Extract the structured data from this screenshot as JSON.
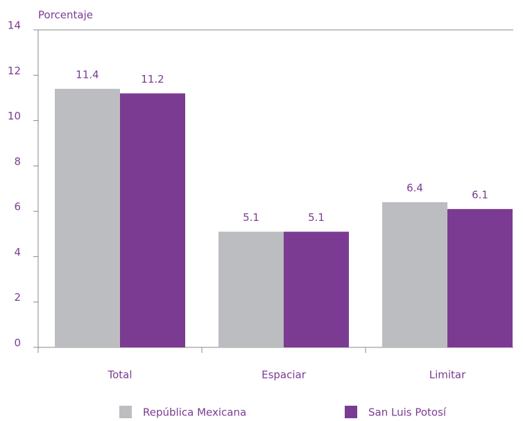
{
  "chart_data": {
    "type": "bar",
    "y_label": "Porcentaje",
    "categories": [
      "Total",
      "Espaciar",
      "Limitar"
    ],
    "series": [
      {
        "name": "República Mexicana",
        "color": "#bcbdc0",
        "values": [
          11.4,
          5.1,
          6.4
        ]
      },
      {
        "name": "San Luis Potosí",
        "color": "#7b3b92",
        "values": [
          11.2,
          5.1,
          6.1
        ]
      }
    ],
    "ylim": [
      0,
      14
    ],
    "yticks": [
      0,
      2,
      4,
      6,
      8,
      10,
      12,
      14
    ]
  }
}
